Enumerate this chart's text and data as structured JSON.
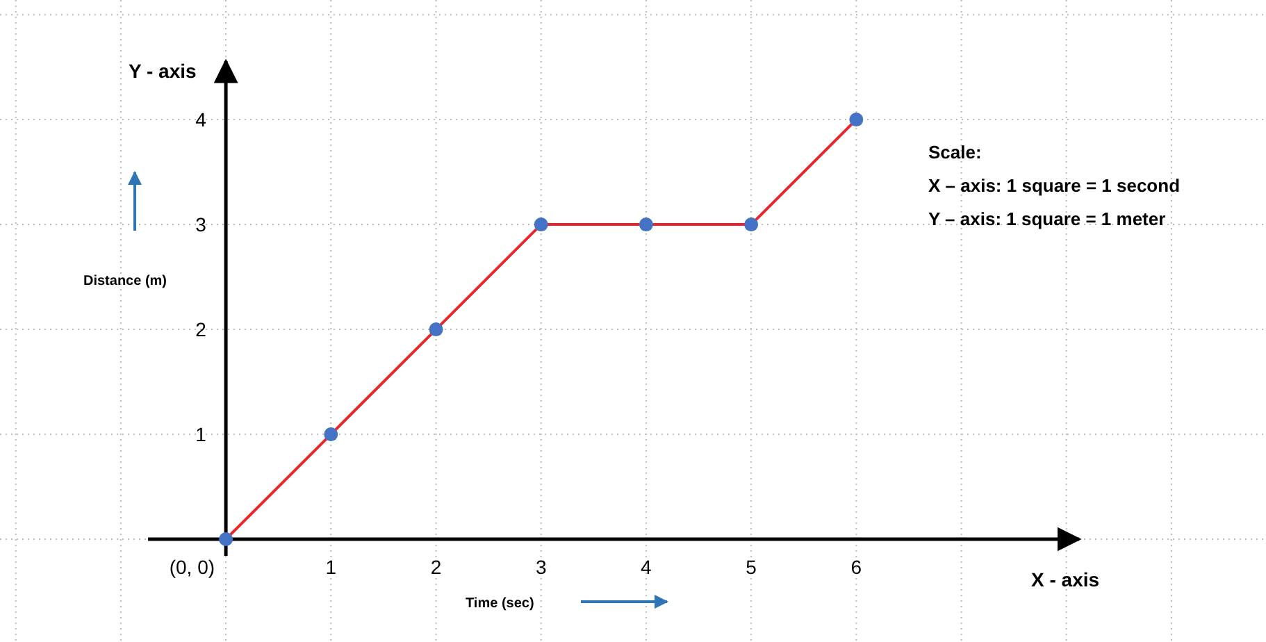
{
  "chart_data": {
    "type": "line",
    "xlabel": "Time (sec)",
    "ylabel": "Distance (m)",
    "x": [
      0,
      1,
      2,
      3,
      4,
      5,
      6
    ],
    "series": [
      {
        "color": "#e8262b",
        "values": [
          0,
          1,
          2,
          3,
          3,
          3,
          4
        ]
      }
    ],
    "marker": "circle",
    "xlim": [
      -2.15,
      9.9
    ],
    "ylim": [
      -0.98,
      5.14
    ],
    "xticks": [
      1,
      2,
      3,
      4,
      5,
      6
    ],
    "yticks": [
      1,
      2,
      3,
      4
    ],
    "grid": true,
    "annotations": [
      {
        "text": "(0, 0)",
        "x": 0,
        "y": 0
      },
      "Y - axis",
      "X - axis",
      "Scale:",
      "X – axis:  1 square = 1 second",
      "Y – axis:  1 square = 1 meter"
    ]
  }
}
